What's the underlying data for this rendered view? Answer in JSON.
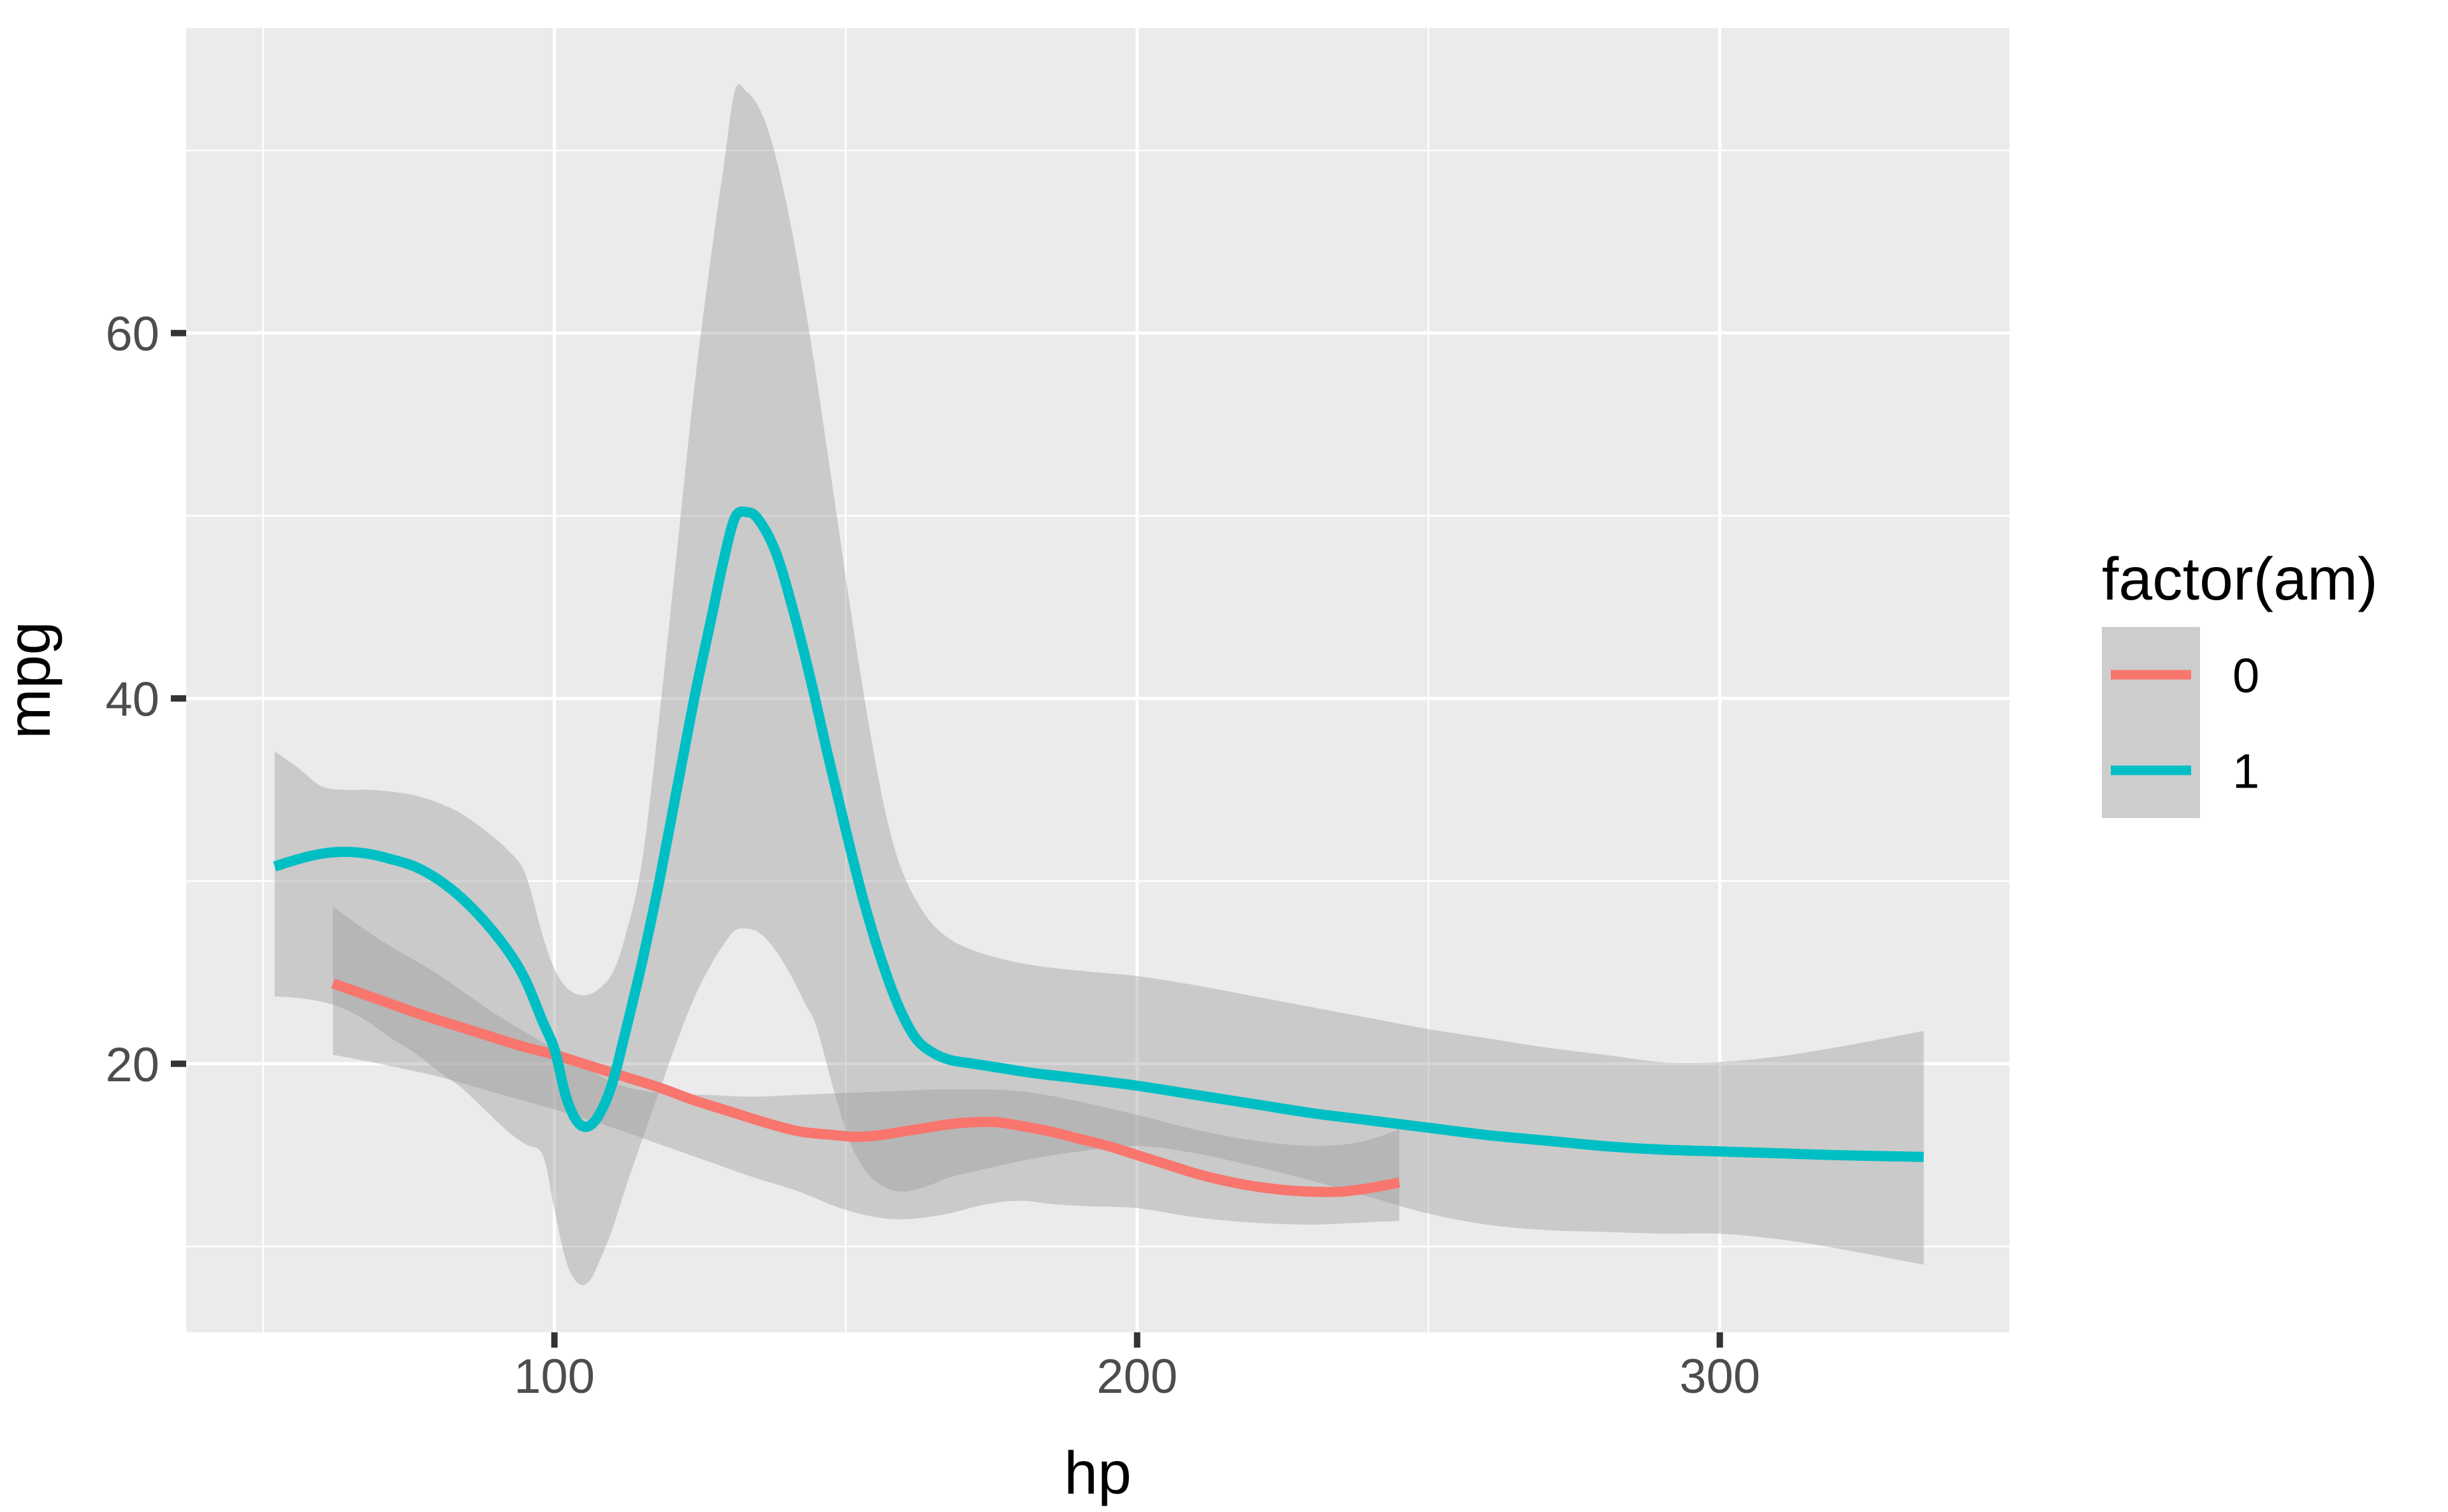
{
  "figure": {
    "background": "#FFFFFF",
    "panel_background": "#EBEBEB",
    "grid_color": "#FFFFFF",
    "tick_color": "#333333",
    "tick_label_color": "#4D4D4D",
    "axis_title_color": "#000000",
    "ribbon_fill": "rgba(153,153,153,0.40)"
  },
  "chart_data": {
    "type": "line",
    "title": "",
    "xlabel": "hp",
    "ylabel": "mpg",
    "xlim": [
      36.8,
      349.7
    ],
    "ylim": [
      5.3,
      76.7
    ],
    "grid": "on",
    "x_ticks": {
      "major": [
        100,
        200,
        300
      ],
      "minor": [
        50,
        150,
        250,
        350
      ]
    },
    "y_ticks": {
      "major": [
        20,
        40,
        60
      ],
      "minor": [
        10,
        30,
        50,
        70
      ]
    },
    "legend": {
      "title": "factor(am)",
      "position": "right",
      "key_fill": "#CDCDCD",
      "entries": [
        {
          "label": "0",
          "color": "#F8766D"
        },
        {
          "label": "1",
          "color": "#00BFC4"
        }
      ]
    },
    "series": [
      {
        "name": "0",
        "color": "#F8766D",
        "smooth_line": [
          [
            62,
            24.4
          ],
          [
            70,
            23.5
          ],
          [
            78,
            22.6
          ],
          [
            86,
            21.8
          ],
          [
            94,
            21.0
          ],
          [
            100,
            20.5
          ],
          [
            106,
            19.9
          ],
          [
            112,
            19.3
          ],
          [
            118,
            18.7
          ],
          [
            124,
            18.0
          ],
          [
            130,
            17.4
          ],
          [
            136,
            16.8
          ],
          [
            142,
            16.3
          ],
          [
            148,
            16.1
          ],
          [
            152,
            16.0
          ],
          [
            156,
            16.1
          ],
          [
            160,
            16.3
          ],
          [
            164,
            16.5
          ],
          [
            168,
            16.7
          ],
          [
            172,
            16.8
          ],
          [
            176,
            16.8
          ],
          [
            180,
            16.6
          ],
          [
            185,
            16.3
          ],
          [
            190,
            15.9
          ],
          [
            195,
            15.5
          ],
          [
            200,
            15.0
          ],
          [
            205,
            14.5
          ],
          [
            210,
            14.0
          ],
          [
            215,
            13.6
          ],
          [
            220,
            13.3
          ],
          [
            225,
            13.1
          ],
          [
            230,
            13.0
          ],
          [
            235,
            13.0
          ],
          [
            240,
            13.2
          ],
          [
            245,
            13.5
          ]
        ],
        "ribbon": [
          [
            62,
            20.5,
            28.6
          ],
          [
            70,
            20.0,
            26.8
          ],
          [
            80,
            19.3,
            24.9
          ],
          [
            90,
            18.4,
            22.7
          ],
          [
            100,
            17.5,
            20.8
          ],
          [
            110,
            16.5,
            19.0
          ],
          [
            118,
            15.6,
            18.4
          ],
          [
            126,
            14.7,
            18.3
          ],
          [
            134,
            13.8,
            18.2
          ],
          [
            142,
            13.0,
            18.3
          ],
          [
            150,
            12.0,
            18.4
          ],
          [
            158,
            11.5,
            18.5
          ],
          [
            166,
            11.7,
            18.6
          ],
          [
            174,
            12.3,
            18.6
          ],
          [
            180,
            12.5,
            18.5
          ],
          [
            186,
            12.3,
            18.2
          ],
          [
            192,
            12.2,
            17.8
          ],
          [
            200,
            12.1,
            17.2
          ],
          [
            210,
            11.6,
            16.4
          ],
          [
            220,
            11.3,
            15.8
          ],
          [
            230,
            11.2,
            15.5
          ],
          [
            238,
            11.3,
            15.7
          ],
          [
            245,
            11.4,
            16.4
          ]
        ]
      },
      {
        "name": "1",
        "color": "#00BFC4",
        "smooth_line": [
          [
            52,
            30.8
          ],
          [
            56,
            31.2
          ],
          [
            60,
            31.5
          ],
          [
            64,
            31.6
          ],
          [
            68,
            31.5
          ],
          [
            72,
            31.2
          ],
          [
            76,
            30.8
          ],
          [
            80,
            30.1
          ],
          [
            84,
            29.1
          ],
          [
            88,
            27.8
          ],
          [
            92,
            26.2
          ],
          [
            95,
            24.6
          ],
          [
            98,
            22.3
          ],
          [
            100,
            20.8
          ],
          [
            102,
            18.2
          ],
          [
            104,
            16.8
          ],
          [
            106,
            16.6
          ],
          [
            108,
            17.4
          ],
          [
            110,
            19.0
          ],
          [
            112,
            21.5
          ],
          [
            115,
            25.5
          ],
          [
            118,
            30.0
          ],
          [
            121,
            35.0
          ],
          [
            124,
            40.0
          ],
          [
            127,
            44.5
          ],
          [
            129,
            47.5
          ],
          [
            131,
            49.9
          ],
          [
            133,
            50.2
          ],
          [
            135,
            49.8
          ],
          [
            138,
            48.0
          ],
          [
            141,
            44.8
          ],
          [
            144,
            41.0
          ],
          [
            147,
            36.8
          ],
          [
            150,
            32.8
          ],
          [
            153,
            29.0
          ],
          [
            156,
            25.8
          ],
          [
            159,
            23.2
          ],
          [
            162,
            21.4
          ],
          [
            165,
            20.6
          ],
          [
            168,
            20.2
          ],
          [
            172,
            20.0
          ],
          [
            176,
            19.8
          ],
          [
            182,
            19.5
          ],
          [
            190,
            19.2
          ],
          [
            200,
            18.8
          ],
          [
            210,
            18.3
          ],
          [
            220,
            17.8
          ],
          [
            230,
            17.3
          ],
          [
            240,
            16.9
          ],
          [
            250,
            16.5
          ],
          [
            260,
            16.1
          ],
          [
            270,
            15.8
          ],
          [
            280,
            15.5
          ],
          [
            290,
            15.3
          ],
          [
            300,
            15.2
          ],
          [
            310,
            15.1
          ],
          [
            320,
            15.0
          ],
          [
            335,
            14.9
          ]
        ],
        "ribbon": [
          [
            52,
            23.7,
            37.1
          ],
          [
            56,
            23.6,
            36.2
          ],
          [
            60,
            23.4,
            35.2
          ],
          [
            64,
            23.0,
            35.0
          ],
          [
            68,
            22.3,
            35.0
          ],
          [
            72,
            21.4,
            34.9
          ],
          [
            76,
            20.6,
            34.7
          ],
          [
            80,
            19.6,
            34.3
          ],
          [
            84,
            18.7,
            33.7
          ],
          [
            88,
            17.5,
            32.8
          ],
          [
            92,
            16.3,
            31.7
          ],
          [
            95,
            15.6,
            30.4
          ],
          [
            98,
            15.0,
            27.0
          ],
          [
            100,
            12.0,
            25.2
          ],
          [
            102,
            9.2,
            24.2
          ],
          [
            104,
            8.0,
            23.8
          ],
          [
            106,
            8.1,
            23.8
          ],
          [
            108,
            9.4,
            24.2
          ],
          [
            110,
            11.0,
            25.0
          ],
          [
            112,
            13.0,
            26.8
          ],
          [
            115,
            15.8,
            31.0
          ],
          [
            118,
            18.5,
            39.0
          ],
          [
            121,
            21.2,
            48.0
          ],
          [
            124,
            23.6,
            57.0
          ],
          [
            127,
            25.5,
            64.5
          ],
          [
            129,
            26.5,
            69.0
          ],
          [
            131,
            27.3,
            73.3
          ],
          [
            133,
            27.4,
            73.2
          ],
          [
            135,
            27.2,
            72.4
          ],
          [
            137,
            26.6,
            70.8
          ],
          [
            139,
            25.7,
            68.3
          ],
          [
            141,
            24.6,
            65.2
          ],
          [
            143,
            23.3,
            61.5
          ],
          [
            145,
            22.0,
            57.5
          ],
          [
            148,
            18.5,
            51.0
          ],
          [
            151,
            15.5,
            44.5
          ],
          [
            154,
            13.9,
            38.5
          ],
          [
            157,
            13.2,
            33.5
          ],
          [
            160,
            13.0,
            30.3
          ],
          [
            164,
            13.3,
            28.0
          ],
          [
            168,
            13.8,
            26.8
          ],
          [
            172,
            14.1,
            26.2
          ],
          [
            176,
            14.4,
            25.8
          ],
          [
            182,
            14.8,
            25.4
          ],
          [
            190,
            15.2,
            25.1
          ],
          [
            200,
            15.5,
            24.8
          ],
          [
            210,
            15.1,
            24.3
          ],
          [
            220,
            14.4,
            23.7
          ],
          [
            230,
            13.6,
            23.1
          ],
          [
            240,
            12.7,
            22.5
          ],
          [
            250,
            11.8,
            21.9
          ],
          [
            260,
            11.2,
            21.4
          ],
          [
            270,
            10.9,
            20.9
          ],
          [
            280,
            10.8,
            20.5
          ],
          [
            290,
            10.7,
            20.1
          ],
          [
            300,
            10.7,
            20.1
          ],
          [
            310,
            10.4,
            20.4
          ],
          [
            320,
            9.9,
            20.9
          ],
          [
            335,
            9.0,
            21.8
          ]
        ]
      }
    ]
  }
}
